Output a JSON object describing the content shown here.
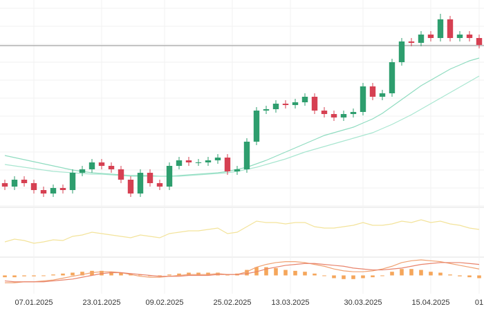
{
  "chart_data": [
    {
      "type": "candlestick",
      "xlim": [
        0,
        50
      ],
      "ylim": [
        0,
        300
      ],
      "xticks": [
        {
          "value": 3.5,
          "label": "07.01.2025"
        },
        {
          "value": 10.5,
          "label": "23.01.2025"
        },
        {
          "value": 17,
          "label": "09.02.2025"
        },
        {
          "value": 24,
          "label": "25.02.2025"
        },
        {
          "value": 30,
          "label": "13.03.2025"
        },
        {
          "value": 37.5,
          "label": "30.03.2025"
        },
        {
          "value": 44.5,
          "label": "15.04.2025"
        },
        {
          "value": 49.5,
          "label": "01"
        }
      ],
      "up_color": "#2e9e6e",
      "down_color": "#d64052",
      "open": [
        35,
        30,
        40,
        35,
        25,
        20,
        28,
        25,
        50,
        55,
        65,
        60,
        55,
        40,
        20,
        50,
        35,
        30,
        60,
        68,
        65,
        65,
        68,
        72,
        52,
        55,
        95,
        140,
        142,
        150,
        148,
        152,
        160,
        140,
        135,
        130,
        135,
        138,
        175,
        160,
        165,
        210,
        240,
        238,
        250,
        245,
        272,
        245,
        250,
        245
      ],
      "high": [
        40,
        45,
        45,
        40,
        30,
        33,
        33,
        55,
        60,
        70,
        70,
        65,
        60,
        45,
        55,
        55,
        40,
        65,
        73,
        73,
        70,
        73,
        77,
        77,
        60,
        100,
        145,
        147,
        155,
        155,
        157,
        165,
        165,
        145,
        140,
        140,
        143,
        180,
        180,
        170,
        215,
        245,
        245,
        255,
        255,
        280,
        277,
        255,
        255,
        250
      ],
      "low": [
        25,
        25,
        30,
        20,
        15,
        15,
        20,
        20,
        45,
        50,
        55,
        50,
        35,
        15,
        15,
        30,
        25,
        25,
        55,
        60,
        60,
        60,
        63,
        47,
        47,
        50,
        90,
        135,
        137,
        143,
        143,
        147,
        135,
        130,
        125,
        125,
        130,
        133,
        155,
        155,
        160,
        205,
        233,
        233,
        240,
        240,
        240,
        240,
        240,
        230
      ],
      "close": [
        30,
        40,
        35,
        25,
        20,
        28,
        25,
        50,
        55,
        65,
        60,
        55,
        40,
        20,
        50,
        35,
        30,
        60,
        68,
        65,
        65,
        68,
        72,
        52,
        55,
        95,
        140,
        142,
        150,
        148,
        152,
        160,
        140,
        135,
        130,
        135,
        138,
        175,
        160,
        165,
        210,
        240,
        238,
        250,
        245,
        272,
        245,
        250,
        245,
        235
      ],
      "series": [
        {
          "color": "#8fdcc0",
          "values": [
            75,
            72,
            69,
            66,
            63,
            60,
            57,
            54,
            52,
            50,
            49,
            48,
            47,
            46,
            46,
            46,
            45,
            45,
            46,
            47,
            48,
            49,
            50,
            52,
            55,
            58,
            63,
            68,
            74,
            80,
            86,
            92,
            98,
            104,
            108,
            112,
            116,
            122,
            128,
            136,
            146,
            156,
            166,
            176,
            184,
            192,
            200,
            206,
            212,
            216
          ]
        },
        {
          "color": "#a8e6d0",
          "values": [
            62,
            60,
            58,
            56,
            54,
            52,
            51,
            50,
            49,
            48,
            48,
            47,
            46,
            45,
            45,
            45,
            45,
            45,
            45,
            46,
            47,
            48,
            49,
            50,
            52,
            55,
            58,
            62,
            66,
            70,
            75,
            80,
            84,
            88,
            92,
            96,
            100,
            104,
            108,
            114,
            120,
            127,
            134,
            142,
            150,
            158,
            166,
            174,
            182,
            190
          ]
        }
      ],
      "hline": 234,
      "hline_color": "#b0b0b0"
    },
    {
      "type": "line",
      "xlim": [
        0,
        50
      ],
      "ylim": [
        0,
        72
      ],
      "series": [
        {
          "color": "#f3e39a",
          "values": [
            22,
            26,
            24,
            20,
            22,
            25,
            24,
            30,
            32,
            36,
            34,
            32,
            30,
            28,
            32,
            30,
            28,
            34,
            36,
            38,
            38,
            40,
            42,
            34,
            36,
            44,
            52,
            50,
            50,
            48,
            50,
            50,
            44,
            42,
            42,
            44,
            46,
            50,
            46,
            46,
            48,
            52,
            50,
            54,
            50,
            52,
            48,
            46,
            42,
            40
          ]
        }
      ]
    },
    {
      "type": "combo",
      "xlim": [
        0,
        50
      ],
      "ylim": [
        -20,
        20
      ],
      "bar_color": "#f5a65b",
      "bars": [
        -2,
        -2,
        -1,
        -1,
        0,
        1,
        2,
        3,
        4,
        5,
        5,
        4,
        3,
        2,
        1,
        0,
        -1,
        1,
        2,
        3,
        3,
        3,
        3,
        1,
        2,
        6,
        9,
        9,
        8,
        6,
        5,
        4,
        2,
        0,
        -3,
        -4,
        -4,
        -3,
        -2,
        0,
        4,
        7,
        7,
        6,
        4,
        3,
        1,
        -1,
        -2,
        -3
      ],
      "series": [
        {
          "color": "#f0a070",
          "values": [
            -8,
            -8,
            -7,
            -7,
            -6,
            -5,
            -3,
            -1,
            1,
            3,
            4,
            4,
            3,
            1,
            -1,
            -2,
            -2,
            -1,
            0,
            1,
            1,
            1,
            2,
            1,
            1,
            4,
            9,
            12,
            14,
            15,
            15,
            14,
            12,
            10,
            7,
            5,
            4,
            4,
            5,
            7,
            10,
            14,
            16,
            17,
            16,
            15,
            13,
            11,
            9,
            7
          ]
        },
        {
          "color": "#e8826a",
          "values": [
            -6,
            -7,
            -7,
            -7,
            -7,
            -6,
            -5,
            -4,
            -2,
            0,
            2,
            3,
            3,
            2,
            1,
            0,
            -1,
            -1,
            -1,
            0,
            0,
            0,
            1,
            1,
            1,
            2,
            4,
            7,
            9,
            11,
            12,
            13,
            13,
            12,
            11,
            10,
            8,
            7,
            6,
            6,
            7,
            8,
            10,
            12,
            13,
            14,
            14,
            14,
            13,
            12
          ]
        }
      ]
    }
  ]
}
